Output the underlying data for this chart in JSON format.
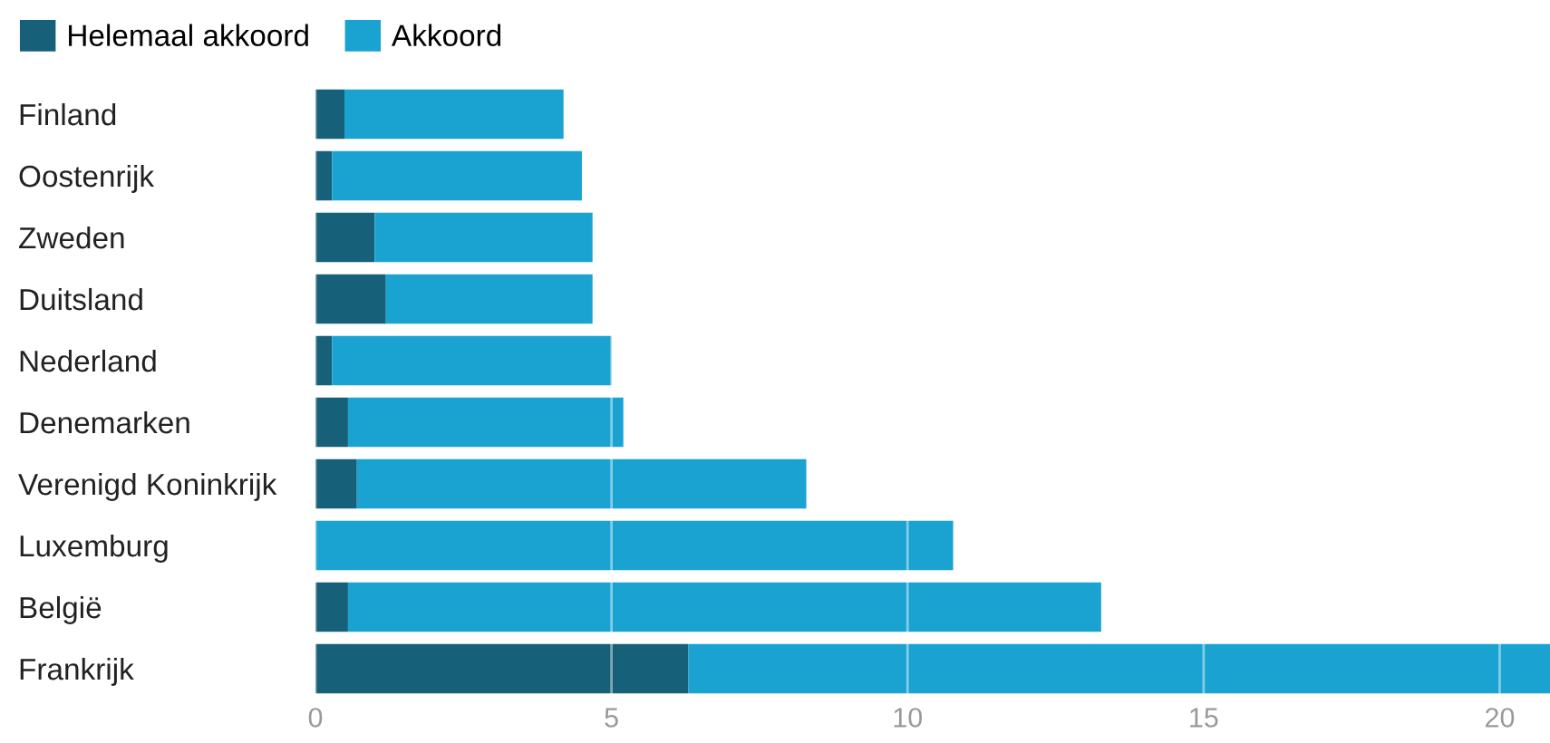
{
  "chart_data": {
    "type": "bar",
    "orientation": "horizontal",
    "stacked": true,
    "categories": [
      "Finland",
      "Oostenrijk",
      "Zweden",
      "Duitsland",
      "Nederland",
      "Denemarken",
      "Verenigd Koninkrijk",
      "Luxemburg",
      "België",
      "Frankrijk"
    ],
    "series": [
      {
        "name": "Helemaal akkoord",
        "color": "#17607a",
        "values": [
          0.49,
          0.28,
          1.0,
          1.19,
          0.28,
          0.55,
          0.7,
          0,
          0.55,
          6.3
        ]
      },
      {
        "name": "Akkoord",
        "color": "#1aa3d1",
        "values": [
          3.7,
          4.22,
          3.68,
          3.49,
          4.72,
          4.65,
          7.59,
          10.77,
          12.72,
          14.55
        ]
      }
    ],
    "xlim": [
      0,
      20.85
    ],
    "xticks": [
      0,
      5,
      10,
      15,
      20
    ],
    "grid": "x",
    "legend": "top left"
  }
}
